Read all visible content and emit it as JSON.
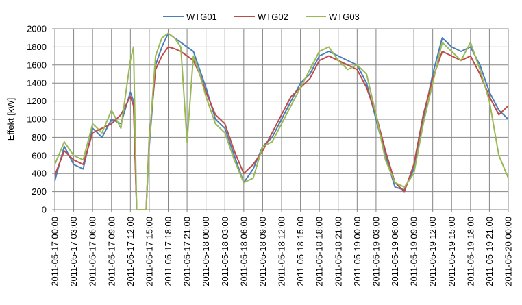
{
  "chart_data": {
    "type": "line",
    "title": "",
    "xlabel": "",
    "ylabel": "Effekt [kW]",
    "ylim": [
      0,
      2000
    ],
    "yticks": [
      0,
      200,
      400,
      600,
      800,
      1000,
      1200,
      1400,
      1600,
      1800,
      2000
    ],
    "x_range": [
      "2011-05-17 00:00",
      "2011-05-20 00:00"
    ],
    "xticks": [
      "2011-05-17 00:00",
      "2011-05-17 03:00",
      "2011-05-17 06:00",
      "2011-05-17 09:00",
      "2011-05-17 12:00",
      "2011-05-17 15:00",
      "2011-05-17 18:00",
      "2011-05-17 21:00",
      "2011-05-18 00:00",
      "2011-05-18 03:00",
      "2011-05-18 06:00",
      "2011-05-18 09:00",
      "2011-05-18 12:00",
      "2011-05-18 15:00",
      "2011-05-18 18:00",
      "2011-05-18 21:00",
      "2011-05-19 00:00",
      "2011-05-19 03:00",
      "2011-05-19 06:00",
      "2011-05-19 09:00",
      "2011-05-19 12:00",
      "2011-05-19 15:00",
      "2011-05-19 18:00",
      "2011-05-19 21:00",
      "2011-05-20 00:00"
    ],
    "grid": true,
    "legend_position": "top",
    "series": [
      {
        "name": "WTG01",
        "color": "#4A7EBB",
        "x": [
          "2011-05-17 00:00",
          "2011-05-17 01:30",
          "2011-05-17 03:00",
          "2011-05-17 04:30",
          "2011-05-17 06:00",
          "2011-05-17 07:30",
          "2011-05-17 09:00",
          "2011-05-17 10:30",
          "2011-05-17 12:00",
          "2011-05-17 12:30",
          "2011-05-17 13:00",
          "2011-05-17 14:30",
          "2011-05-17 15:00",
          "2011-05-17 16:00",
          "2011-05-17 17:00",
          "2011-05-17 18:00",
          "2011-05-17 19:00",
          "2011-05-17 20:00",
          "2011-05-17 21:00",
          "2011-05-17 22:00",
          "2011-05-17 23:00",
          "2011-05-18 00:00",
          "2011-05-18 01:30",
          "2011-05-18 03:00",
          "2011-05-18 04:30",
          "2011-05-18 06:00",
          "2011-05-18 07:30",
          "2011-05-18 09:00",
          "2011-05-18 10:30",
          "2011-05-18 12:00",
          "2011-05-18 13:30",
          "2011-05-18 15:00",
          "2011-05-18 16:30",
          "2011-05-18 18:00",
          "2011-05-18 19:30",
          "2011-05-18 21:00",
          "2011-05-18 22:30",
          "2011-05-19 00:00",
          "2011-05-19 01:30",
          "2011-05-19 03:00",
          "2011-05-19 04:30",
          "2011-05-19 06:00",
          "2011-05-19 07:30",
          "2011-05-19 09:00",
          "2011-05-19 10:30",
          "2011-05-19 12:00",
          "2011-05-19 13:30",
          "2011-05-19 15:00",
          "2011-05-19 16:30",
          "2011-05-19 18:00",
          "2011-05-19 19:30",
          "2011-05-19 21:00",
          "2011-05-19 22:30",
          "2011-05-20 00:00"
        ],
        "values": [
          320,
          700,
          500,
          450,
          900,
          800,
          1000,
          950,
          1300,
          1200,
          0,
          0,
          700,
          1600,
          1800,
          1950,
          1900,
          1850,
          1800,
          1750,
          1550,
          1350,
          1000,
          900,
          600,
          300,
          450,
          700,
          800,
          1000,
          1200,
          1400,
          1500,
          1700,
          1750,
          1700,
          1650,
          1600,
          1400,
          1000,
          600,
          250,
          220,
          450,
          1000,
          1500,
          1900,
          1800,
          1750,
          1800,
          1600,
          1300,
          1100,
          1000
        ]
      },
      {
        "name": "WTG02",
        "color": "#BE4B48",
        "x": [
          "2011-05-17 00:00",
          "2011-05-17 01:30",
          "2011-05-17 03:00",
          "2011-05-17 04:30",
          "2011-05-17 06:00",
          "2011-05-17 07:30",
          "2011-05-17 09:00",
          "2011-05-17 10:30",
          "2011-05-17 12:00",
          "2011-05-17 12:30",
          "2011-05-17 13:00",
          "2011-05-17 14:30",
          "2011-05-17 15:00",
          "2011-05-17 16:00",
          "2011-05-17 17:00",
          "2011-05-17 18:00",
          "2011-05-17 19:00",
          "2011-05-17 20:00",
          "2011-05-17 21:00",
          "2011-05-17 22:00",
          "2011-05-17 23:00",
          "2011-05-18 00:00",
          "2011-05-18 01:30",
          "2011-05-18 03:00",
          "2011-05-18 04:30",
          "2011-05-18 06:00",
          "2011-05-18 07:30",
          "2011-05-18 09:00",
          "2011-05-18 10:30",
          "2011-05-18 12:00",
          "2011-05-18 13:30",
          "2011-05-18 15:00",
          "2011-05-18 16:30",
          "2011-05-18 18:00",
          "2011-05-18 19:30",
          "2011-05-18 21:00",
          "2011-05-18 22:30",
          "2011-05-19 00:00",
          "2011-05-19 01:30",
          "2011-05-19 03:00",
          "2011-05-19 04:30",
          "2011-05-19 06:00",
          "2011-05-19 07:30",
          "2011-05-19 09:00",
          "2011-05-19 10:30",
          "2011-05-19 12:00",
          "2011-05-19 13:30",
          "2011-05-19 15:00",
          "2011-05-19 16:30",
          "2011-05-19 18:00",
          "2011-05-19 19:30",
          "2011-05-19 21:00",
          "2011-05-19 22:30",
          "2011-05-20 00:00"
        ],
        "values": [
          380,
          650,
          550,
          500,
          850,
          900,
          950,
          1050,
          1250,
          1150,
          0,
          0,
          800,
          1550,
          1700,
          1800,
          1780,
          1750,
          1700,
          1650,
          1500,
          1300,
          1050,
          950,
          650,
          400,
          500,
          650,
          850,
          1050,
          1250,
          1350,
          1450,
          1650,
          1700,
          1650,
          1600,
          1550,
          1350,
          1050,
          650,
          300,
          200,
          500,
          1050,
          1450,
          1750,
          1700,
          1650,
          1700,
          1500,
          1250,
          1050,
          1150
        ]
      },
      {
        "name": "WTG03",
        "color": "#98B954",
        "x": [
          "2011-05-17 00:00",
          "2011-05-17 01:30",
          "2011-05-17 03:00",
          "2011-05-17 04:30",
          "2011-05-17 06:00",
          "2011-05-17 07:30",
          "2011-05-17 09:00",
          "2011-05-17 10:30",
          "2011-05-17 12:00",
          "2011-05-17 12:30",
          "2011-05-17 13:00",
          "2011-05-17 14:30",
          "2011-05-17 15:00",
          "2011-05-17 16:00",
          "2011-05-17 17:00",
          "2011-05-17 18:00",
          "2011-05-17 19:00",
          "2011-05-17 20:00",
          "2011-05-17 21:00",
          "2011-05-17 22:00",
          "2011-05-17 23:00",
          "2011-05-18 00:00",
          "2011-05-18 01:30",
          "2011-05-18 03:00",
          "2011-05-18 04:30",
          "2011-05-18 06:00",
          "2011-05-18 07:30",
          "2011-05-18 09:00",
          "2011-05-18 10:30",
          "2011-05-18 12:00",
          "2011-05-18 13:30",
          "2011-05-18 15:00",
          "2011-05-18 16:30",
          "2011-05-18 18:00",
          "2011-05-18 19:30",
          "2011-05-18 21:00",
          "2011-05-18 22:30",
          "2011-05-19 00:00",
          "2011-05-19 01:30",
          "2011-05-19 03:00",
          "2011-05-19 04:30",
          "2011-05-19 06:00",
          "2011-05-19 07:30",
          "2011-05-19 09:00",
          "2011-05-19 10:30",
          "2011-05-19 12:00",
          "2011-05-19 13:30",
          "2011-05-19 15:00",
          "2011-05-19 16:30",
          "2011-05-19 18:00",
          "2011-05-19 19:30",
          "2011-05-19 21:00",
          "2011-05-19 22:30",
          "2011-05-20 00:00"
        ],
        "values": [
          500,
          750,
          600,
          550,
          950,
          850,
          1100,
          900,
          1650,
          1800,
          0,
          0,
          750,
          1700,
          1900,
          1950,
          1900,
          1800,
          750,
          1700,
          1500,
          1250,
          950,
          850,
          550,
          300,
          350,
          700,
          750,
          950,
          1150,
          1350,
          1550,
          1750,
          1800,
          1650,
          1550,
          1600,
          1500,
          1050,
          550,
          300,
          250,
          400,
          950,
          1400,
          1850,
          1750,
          1650,
          1850,
          1550,
          1200,
          600,
          350
        ]
      }
    ]
  }
}
